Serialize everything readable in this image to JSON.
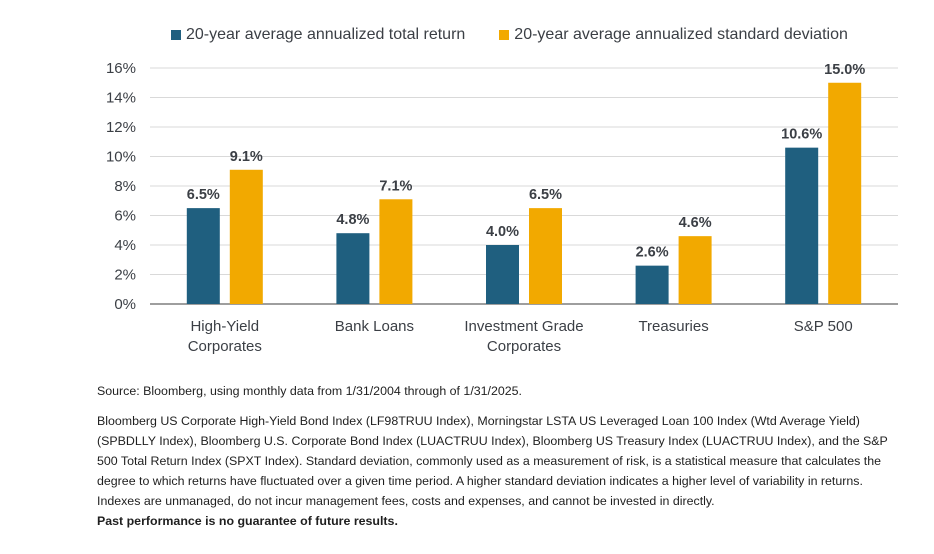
{
  "chart_data": {
    "type": "bar",
    "categories": [
      [
        "High-Yield",
        "Corporates"
      ],
      [
        "Bank Loans"
      ],
      [
        "Investment Grade",
        "Corporates"
      ],
      [
        "Treasuries"
      ],
      [
        "S&P 500"
      ]
    ],
    "series": [
      {
        "name": "20-year average annualized total return",
        "color": "#1f5f7f",
        "values": [
          6.5,
          4.8,
          4.0,
          2.6,
          10.6
        ],
        "labels": [
          "6.5%",
          "4.8%",
          "4.0%",
          "2.6%",
          "10.6%"
        ]
      },
      {
        "name": "20-year average annualized standard deviation",
        "color": "#f2a900",
        "values": [
          9.1,
          7.1,
          6.5,
          4.6,
          15.0
        ],
        "labels": [
          "9.1%",
          "7.1%",
          "6.5%",
          "4.6%",
          "15.0%"
        ]
      }
    ],
    "yticks": [
      "0%",
      "2%",
      "4%",
      "6%",
      "8%",
      "10%",
      "12%",
      "14%",
      "16%"
    ],
    "ylim": [
      0,
      16
    ],
    "grid": true,
    "legend": "top"
  },
  "notes": {
    "source": "Source: Bloomberg, using monthly data from 1/31/2004 through of 1/31/2025.",
    "body": "Bloomberg US Corporate High-Yield Bond Index (LF98TRUU Index), Morningstar LSTA US Leveraged Loan 100 Index (Wtd Average Yield) (SPBDLLY Index), Bloomberg U.S. Corporate Bond Index (LUACTRUU Index), Bloomberg US Treasury Index (LUACTRUU Index), and the S&P 500 Total Return Index (SPXT Index). Standard deviation, commonly used as a measurement of risk, is a statistical measure that calculates the degree to which returns have fluctuated over a given time period. A higher standard deviation indicates a higher level of variability in returns.   Indexes are unmanaged, do not incur management fees, costs and expenses, and cannot be invested in directly.",
    "disclaimer": "Past performance is no guarantee of future results."
  }
}
